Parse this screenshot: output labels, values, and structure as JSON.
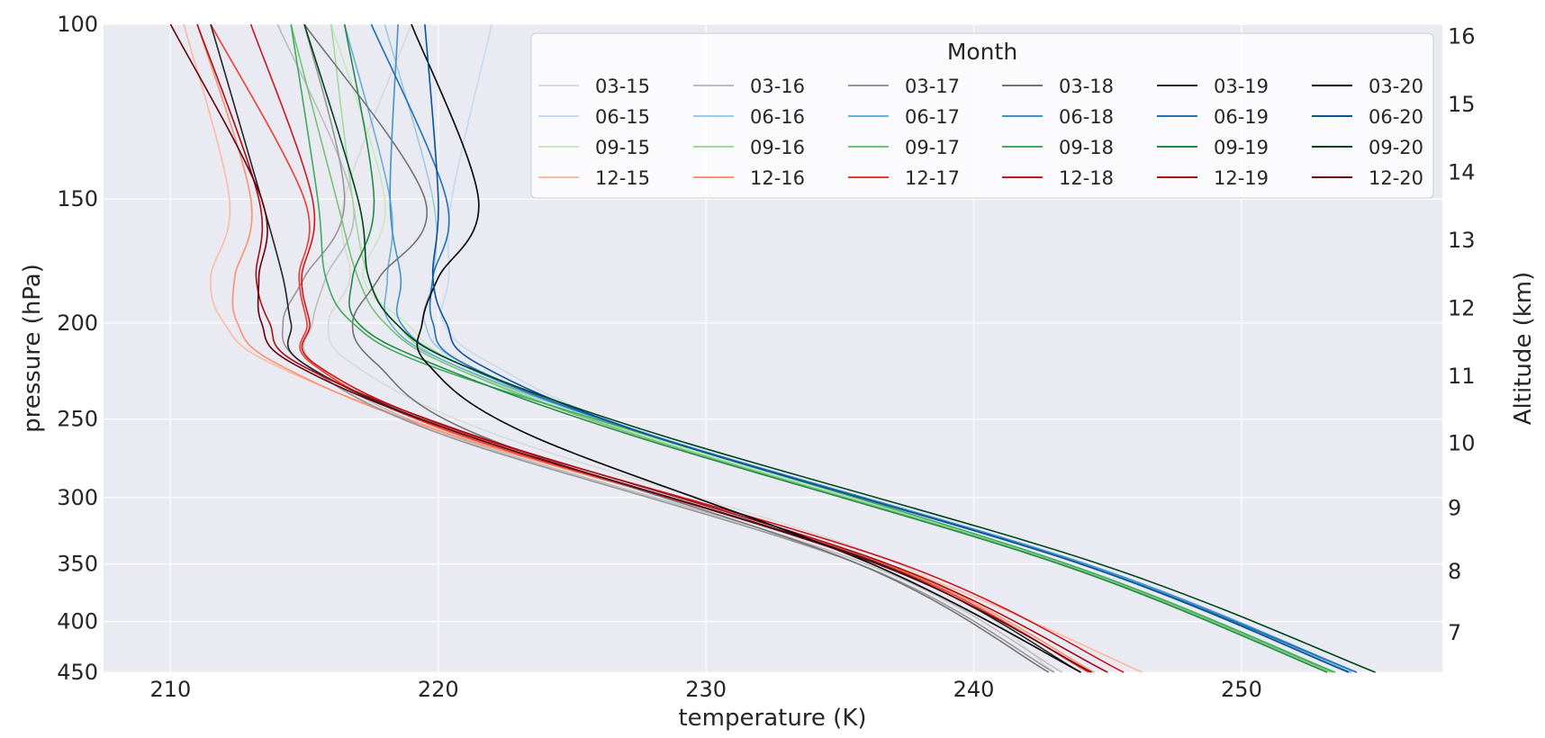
{
  "chart_data": {
    "type": "line",
    "title": "",
    "xlabel": "temperature (K)",
    "ylabel": "pressure (hPa)",
    "y2label": "Altitude (km)",
    "xlim": [
      207.5,
      257.5
    ],
    "ylim": [
      450,
      100
    ],
    "yscale": "log",
    "xticks": [
      210,
      220,
      230,
      240,
      250
    ],
    "yticks": [
      100,
      150,
      200,
      250,
      300,
      350,
      400,
      450
    ],
    "y2ticks": [
      7,
      8,
      9,
      10,
      11,
      12,
      13,
      14,
      15,
      16
    ],
    "legend": {
      "title": "Month",
      "placement": "top-right",
      "columns": 6
    },
    "grid": true,
    "background": "#eaeaf2",
    "series": [
      {
        "name": "03-15",
        "color": "#d9d9d9",
        "x": [
          219.0,
          216.5,
          216.7,
          215.9,
          216.8,
          222.3,
          237.2,
          243.0
        ],
        "y": [
          100,
          150,
          180,
          200,
          220,
          260,
          350,
          450
        ]
      },
      {
        "name": "06-15",
        "color": "#c6dbef",
        "x": [
          222.0,
          220.5,
          220.4,
          220.2,
          222.0,
          228.0,
          244.0,
          254.0
        ],
        "y": [
          100,
          150,
          180,
          200,
          220,
          260,
          350,
          450
        ]
      },
      {
        "name": "09-15",
        "color": "#c7e9c0",
        "x": [
          216.0,
          218.0,
          217.2,
          218.8,
          220.8,
          227.8,
          243.3,
          253.2
        ],
        "y": [
          100,
          150,
          180,
          200,
          220,
          260,
          350,
          450
        ]
      },
      {
        "name": "12-15",
        "color": "#fcbba1",
        "x": [
          210.5,
          212.2,
          211.5,
          212.0,
          213.8,
          220.8,
          236.8,
          246.3
        ],
        "y": [
          100,
          150,
          180,
          200,
          220,
          260,
          350,
          450
        ]
      },
      {
        "name": "03-16",
        "color": "#bdbdbd",
        "x": [
          214.0,
          216.8,
          215.8,
          215.3,
          215.4,
          220.5,
          236.0,
          243.3
        ],
        "y": [
          100,
          150,
          180,
          200,
          220,
          260,
          350,
          450
        ]
      },
      {
        "name": "06-16",
        "color": "#9ecae1",
        "x": [
          218.0,
          219.8,
          219.8,
          219.5,
          221.0,
          228.1,
          244.1,
          254.1
        ],
        "y": [
          100,
          150,
          180,
          200,
          220,
          260,
          350,
          450
        ]
      },
      {
        "name": "09-16",
        "color": "#a1d99b",
        "x": [
          216.0,
          216.8,
          217.4,
          218.4,
          220.5,
          227.6,
          243.4,
          253.3
        ],
        "y": [
          100,
          150,
          180,
          200,
          220,
          260,
          350,
          450
        ]
      },
      {
        "name": "12-16",
        "color": "#fc9272",
        "x": [
          211.0,
          213.0,
          212.4,
          212.5,
          214.0,
          220.6,
          236.7,
          244.5
        ],
        "y": [
          100,
          150,
          180,
          200,
          220,
          260,
          350,
          450
        ]
      },
      {
        "name": "03-17",
        "color": "#969696",
        "x": [
          215.0,
          216.5,
          215.0,
          214.2,
          215.0,
          220.3,
          235.7,
          243.0
        ],
        "y": [
          100,
          150,
          180,
          200,
          220,
          260,
          350,
          450
        ]
      },
      {
        "name": "06-17",
        "color": "#6baed6",
        "x": [
          216.5,
          218.2,
          218.1,
          218.2,
          220.5,
          228.0,
          244.1,
          254.1
        ],
        "y": [
          100,
          150,
          180,
          200,
          220,
          260,
          350,
          450
        ]
      },
      {
        "name": "09-17",
        "color": "#74c476",
        "x": [
          214.5,
          216.2,
          217.0,
          218.0,
          220.3,
          227.5,
          243.3,
          253.4
        ],
        "y": [
          100,
          150,
          180,
          200,
          220,
          260,
          350,
          450
        ]
      },
      {
        "name": "12-17",
        "color": "#ef3b2c",
        "x": [
          211.5,
          215.0,
          214.8,
          215.1,
          215.3,
          220.9,
          236.6,
          244.3
        ],
        "y": [
          100,
          150,
          180,
          200,
          220,
          260,
          350,
          450
        ]
      },
      {
        "name": "03-18",
        "color": "#737373",
        "x": [
          215.0,
          219.5,
          217.8,
          216.8,
          217.7,
          221.6,
          235.7,
          242.8
        ],
        "y": [
          100,
          150,
          180,
          200,
          220,
          260,
          350,
          450
        ]
      },
      {
        "name": "06-18",
        "color": "#4292c6",
        "x": [
          218.5,
          218.2,
          218.6,
          218.6,
          220.8,
          228.0,
          244.2,
          254.3
        ],
        "y": [
          100,
          150,
          180,
          200,
          220,
          260,
          350,
          450
        ]
      },
      {
        "name": "09-18",
        "color": "#41ab5d",
        "x": [
          214.5,
          215.5,
          215.8,
          216.8,
          219.5,
          227.9,
          243.5,
          253.5
        ],
        "y": [
          100,
          150,
          180,
          200,
          220,
          260,
          350,
          450
        ]
      },
      {
        "name": "12-18",
        "color": "#cb181d",
        "x": [
          213.0,
          215.3,
          214.9,
          215.2,
          215.4,
          221.3,
          237.3,
          245.6
        ],
        "y": [
          100,
          150,
          180,
          200,
          220,
          260,
          350,
          450
        ]
      },
      {
        "name": "03-19",
        "color": "#252525",
        "x": [
          211.5,
          213.4,
          214.2,
          214.5,
          215.0,
          221.1,
          236.5,
          244.0
        ],
        "y": [
          100,
          150,
          180,
          200,
          220,
          260,
          350,
          450
        ]
      },
      {
        "name": "06-19",
        "color": "#2171b5",
        "x": [
          217.5,
          220.3,
          219.8,
          219.8,
          221.0,
          228.0,
          244.0,
          254.3
        ],
        "y": [
          100,
          150,
          180,
          200,
          220,
          260,
          350,
          450
        ]
      },
      {
        "name": "09-19",
        "color": "#238b45",
        "x": [
          216.5,
          217.6,
          216.8,
          217.0,
          219.8,
          227.3,
          243.2,
          253.2
        ],
        "y": [
          100,
          150,
          180,
          200,
          220,
          260,
          350,
          450
        ]
      },
      {
        "name": "12-19",
        "color": "#a50f15",
        "x": [
          211.0,
          213.3,
          213.2,
          213.7,
          214.8,
          221.4,
          236.8,
          245.0
        ],
        "y": [
          100,
          150,
          180,
          200,
          220,
          260,
          350,
          450
        ]
      },
      {
        "name": "03-20",
        "color": "#000000",
        "x": [
          219.0,
          221.5,
          220.0,
          219.4,
          219.6,
          223.5,
          236.2,
          244.0
        ],
        "y": [
          100,
          150,
          180,
          200,
          220,
          260,
          350,
          450
        ]
      },
      {
        "name": "06-20",
        "color": "#08519c",
        "x": [
          219.5,
          220.0,
          219.8,
          220.3,
          221.5,
          228.0,
          244.0,
          254.0
        ],
        "y": [
          100,
          150,
          180,
          200,
          220,
          260,
          350,
          450
        ]
      },
      {
        "name": "09-20",
        "color": "#00441b",
        "x": [
          215.0,
          217.0,
          217.4,
          218.4,
          220.8,
          228.4,
          244.7,
          255.0
        ],
        "y": [
          100,
          150,
          180,
          200,
          220,
          260,
          350,
          450
        ]
      },
      {
        "name": "12-20",
        "color": "#67000d",
        "x": [
          210.0,
          213.4,
          213.3,
          213.4,
          214.6,
          221.1,
          236.4,
          244.4
        ],
        "y": [
          100,
          150,
          180,
          200,
          220,
          260,
          350,
          450
        ]
      }
    ]
  }
}
